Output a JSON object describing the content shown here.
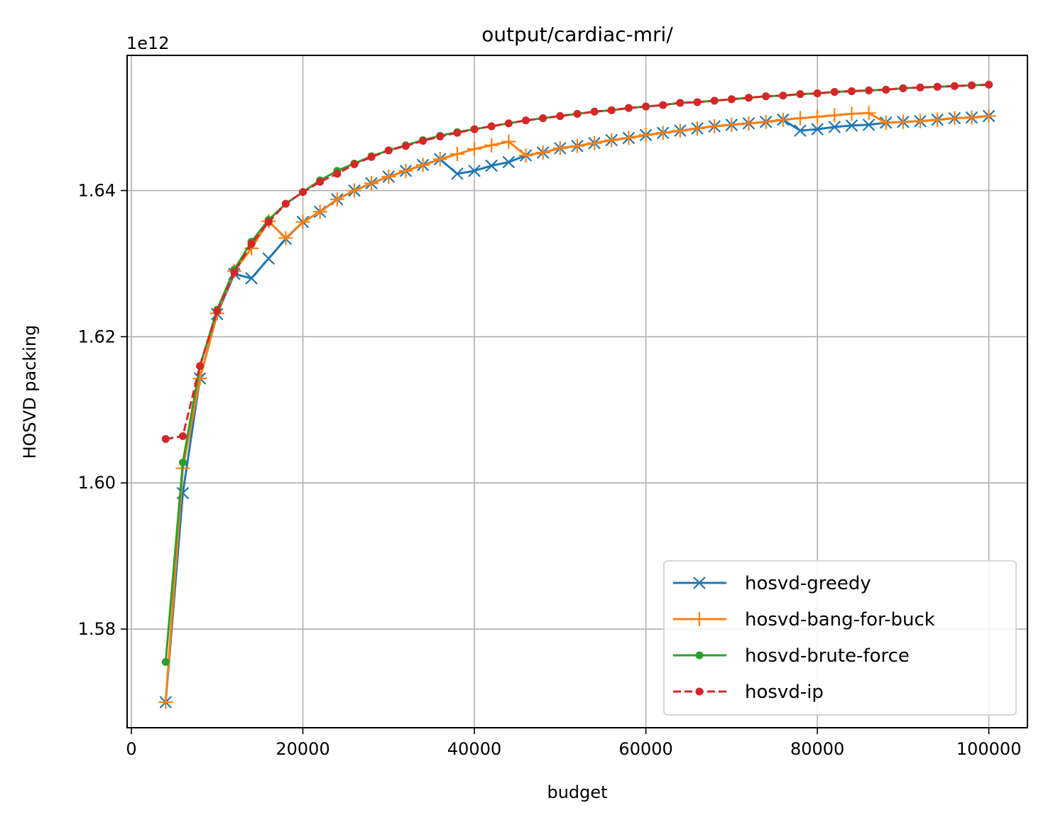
{
  "chart_data": {
    "type": "line",
    "title": "output/cardiac-mri/",
    "xlabel": "budget",
    "ylabel": "HOSVD packing",
    "y_offset_label": "1e12",
    "xlim": [
      -500,
      104500
    ],
    "ylim": [
      1.5665,
      1.6585
    ],
    "x_ticks": [
      0,
      20000,
      40000,
      60000,
      80000,
      100000
    ],
    "x_tick_labels": [
      "0",
      "20000",
      "40000",
      "60000",
      "80000",
      "100000"
    ],
    "y_ticks": [
      1.58,
      1.6,
      1.62,
      1.64
    ],
    "y_tick_labels": [
      "1.58",
      "1.60",
      "1.62",
      "1.64"
    ],
    "grid": true,
    "legend_position": "lower-right",
    "x": [
      4000,
      6000,
      8000,
      10000,
      12000,
      14000,
      16000,
      18000,
      20000,
      22000,
      24000,
      26000,
      28000,
      30000,
      32000,
      34000,
      36000,
      38000,
      40000,
      42000,
      44000,
      46000,
      48000,
      50000,
      52000,
      54000,
      56000,
      58000,
      60000,
      62000,
      64000,
      66000,
      68000,
      70000,
      72000,
      74000,
      76000,
      78000,
      80000,
      82000,
      84000,
      86000,
      88000,
      90000,
      92000,
      94000,
      96000,
      98000,
      100000
    ],
    "series": [
      {
        "name": "hosvd-greedy",
        "color": "#1f77b4",
        "marker": "x",
        "linestyle": "solid",
        "values": [
          1.57,
          1.5986,
          1.6143,
          1.6231,
          1.6286,
          1.628,
          1.6307,
          1.6334,
          1.6357,
          1.6371,
          1.6388,
          1.64,
          1.641,
          1.6419,
          1.6427,
          1.6435,
          1.6443,
          1.6423,
          1.6427,
          1.6434,
          1.6439,
          1.6448,
          1.6452,
          1.6458,
          1.6461,
          1.6465,
          1.6469,
          1.6472,
          1.6476,
          1.6479,
          1.6482,
          1.6485,
          1.6488,
          1.649,
          1.6492,
          1.6494,
          1.6497,
          1.6482,
          1.6484,
          1.6487,
          1.6489,
          1.649,
          1.6493,
          1.6494,
          1.6495,
          1.6497,
          1.6499,
          1.65,
          1.6502
        ]
      },
      {
        "name": "hosvd-bang-for-buck",
        "color": "#ff7f0e",
        "marker": "+",
        "linestyle": "solid",
        "values": [
          1.57,
          1.602,
          1.6143,
          1.6232,
          1.629,
          1.6321,
          1.6358,
          1.6335,
          1.6357,
          1.6371,
          1.6388,
          1.64,
          1.641,
          1.6419,
          1.6427,
          1.6435,
          1.6443,
          1.645,
          1.6457,
          1.6462,
          1.6467,
          1.6448,
          1.6452,
          1.6458,
          1.6461,
          1.6465,
          1.6469,
          1.6472,
          1.6476,
          1.6479,
          1.6482,
          1.6485,
          1.6488,
          1.649,
          1.6492,
          1.6494,
          1.6497,
          1.6499,
          1.6501,
          1.6503,
          1.6505,
          1.6506,
          1.6493,
          1.6494,
          1.6495,
          1.6497,
          1.6499,
          1.65,
          1.6502
        ]
      },
      {
        "name": "hosvd-brute-force",
        "color": "#2ca02c",
        "marker": ".",
        "linestyle": "solid",
        "values": [
          1.5755,
          1.6028,
          1.616,
          1.6237,
          1.6292,
          1.633,
          1.636,
          1.6382,
          1.6398,
          1.6414,
          1.6427,
          1.6437,
          1.6447,
          1.6455,
          1.6462,
          1.6469,
          1.6475,
          1.648,
          1.6484,
          1.6488,
          1.6492,
          1.6496,
          1.6499,
          1.6502,
          1.6505,
          1.6508,
          1.651,
          1.6513,
          1.6515,
          1.6517,
          1.652,
          1.6521,
          1.6523,
          1.6525,
          1.6527,
          1.6529,
          1.653,
          1.6532,
          1.6533,
          1.6535,
          1.6536,
          1.6537,
          1.6538,
          1.654,
          1.6541,
          1.6542,
          1.6543,
          1.6544,
          1.6545
        ]
      },
      {
        "name": "hosvd-ip",
        "color": "#d62728",
        "marker": ".",
        "linestyle": "dashed",
        "values": [
          1.606,
          1.6064,
          1.616,
          1.6235,
          1.6288,
          1.6327,
          1.6357,
          1.6382,
          1.6398,
          1.6412,
          1.6423,
          1.6436,
          1.6446,
          1.6455,
          1.6461,
          1.6468,
          1.6474,
          1.6479,
          1.6484,
          1.6488,
          1.6492,
          1.6496,
          1.6499,
          1.6502,
          1.6505,
          1.6508,
          1.651,
          1.6513,
          1.6515,
          1.6517,
          1.652,
          1.6521,
          1.6523,
          1.6525,
          1.6527,
          1.6529,
          1.653,
          1.6532,
          1.6533,
          1.6535,
          1.6536,
          1.6537,
          1.6538,
          1.654,
          1.6541,
          1.6542,
          1.6543,
          1.6544,
          1.6545
        ]
      }
    ]
  }
}
